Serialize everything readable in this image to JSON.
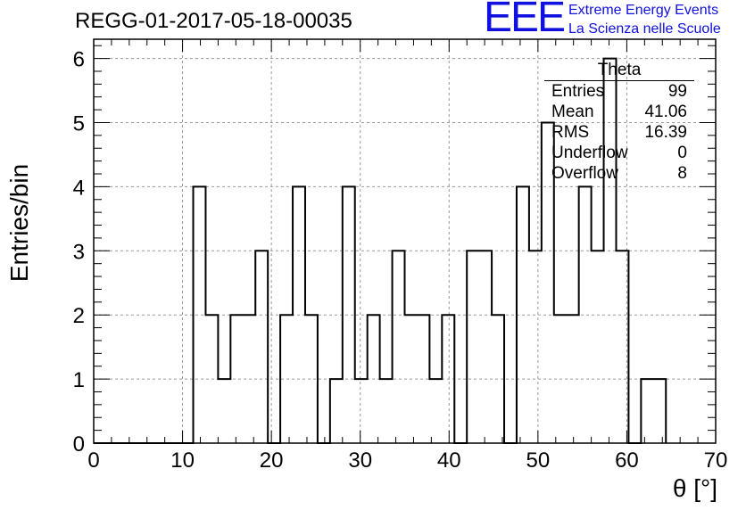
{
  "chart_data": {
    "type": "bar",
    "style": "histogram-step",
    "title": "REGG-01-2017-05-18-00035",
    "xlabel": "θ [°]",
    "ylabel": "Entries/bin",
    "xlim": [
      0,
      70
    ],
    "ylim": [
      0,
      6.3
    ],
    "grid": true,
    "x_ticks": [
      "0",
      "10",
      "20",
      "30",
      "40",
      "50",
      "60",
      "70"
    ],
    "y_ticks": [
      "0",
      "1",
      "2",
      "3",
      "4",
      "5",
      "6"
    ],
    "bin_width": 1.4,
    "values": [
      0,
      0,
      0,
      0,
      0,
      0,
      0,
      0,
      4,
      2,
      1,
      2,
      2,
      3,
      0,
      2,
      4,
      2,
      0,
      1,
      4,
      1,
      2,
      1,
      3,
      2,
      2,
      1,
      2,
      0,
      3,
      3,
      2,
      0,
      4,
      3,
      5,
      2,
      2,
      4,
      3,
      6,
      3,
      0,
      1,
      1
    ],
    "line_color": "#000000"
  },
  "logo": {
    "mark": "EEE",
    "line1": "Extreme Energy Events",
    "line2": "La Scienza nelle Scuole",
    "color": "#1010e0"
  },
  "stats": {
    "title": "Theta",
    "rows": [
      {
        "label": "Entries",
        "value": "99"
      },
      {
        "label": "Mean",
        "value": "41.06"
      },
      {
        "label": "RMS",
        "value": "16.39"
      },
      {
        "label": "Underflow",
        "value": "0"
      },
      {
        "label": "Overflow",
        "value": "8"
      }
    ]
  }
}
